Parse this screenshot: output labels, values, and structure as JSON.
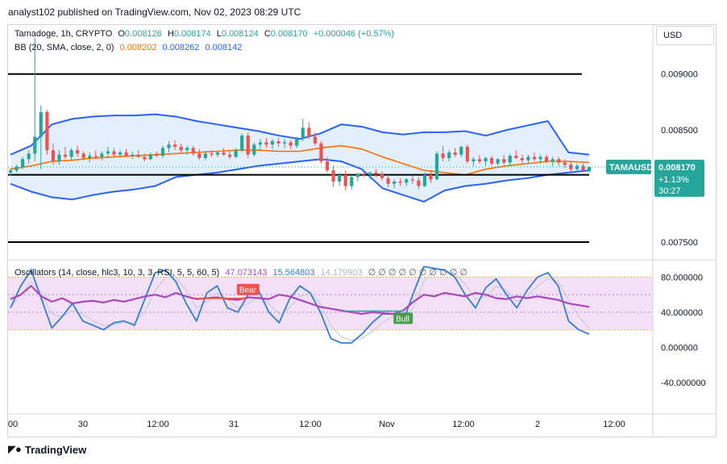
{
  "publisher_line": "analyst102 published on TradingView.com, Nov 02, 2023 08:29 UTC",
  "currency_button": "USD",
  "legend_price": {
    "symbol": "Tamadoge, 1h, CRYPTO",
    "open_label": "O",
    "open": "0.008126",
    "high_label": "H",
    "high": "0.008174",
    "low_label": "L",
    "low": "0.008124",
    "close_label": "C",
    "close": "0.008170",
    "change": "+0.000046 (+0.57%)"
  },
  "legend_bb": {
    "label": "BB (20, SMA, close, 2, 0)",
    "basis": "0.008202",
    "upper": "0.008262",
    "lower": "0.008142"
  },
  "legend_osc": {
    "label": "Oscillators (14, close, hlc3, 10, 3, 3, RSI, 5, 5, 60, 5)",
    "v1": "47.073143",
    "v2": "15.564803",
    "v3": "14.179903",
    "empties": "∅ ∅ ∅ ∅ ∅ ∅ ∅ ∅ ∅ ∅"
  },
  "price_badge": {
    "symbol": "TAMAUSD",
    "price": "0.008170",
    "change": "+1.13%",
    "countdown": "30:27"
  },
  "signals": {
    "bear": "Bear",
    "bull": "Bull"
  },
  "brand": "TradingView",
  "colors": {
    "up": "#26a69a",
    "down": "#ef5350",
    "bb_band": "#2962ff",
    "bb_basis": "#ff6d00",
    "bb_fill": "#e3effd",
    "stoch": "#2f7fd6",
    "rsi": "#ab47bc",
    "osc_fill": "#f3e0f7",
    "badge": "#26a69a"
  },
  "chart_data": [
    {
      "type": "candlestick",
      "series_name": "Tamadoge, 1h",
      "price_axis": {
        "ticks": [
          0.009,
          0.0085,
          0.0075
        ],
        "tick_labels": [
          "0.009000",
          "0.008500",
          "0.007500"
        ],
        "range": [
          0.00737,
          0.00943
        ]
      },
      "time_axis": {
        "labels": [
          "00",
          "30",
          "12:00",
          "31",
          "12:00",
          "Nov",
          "12:00",
          "2",
          "12:00"
        ]
      },
      "horizontal_levels": [
        0.009,
        0.0081,
        0.0075
      ],
      "candles": [
        [
          0.00812,
          0.00816,
          0.00809,
          0.00814
        ],
        [
          0.00814,
          0.00819,
          0.00812,
          0.00817
        ],
        [
          0.00817,
          0.00826,
          0.00815,
          0.00824
        ],
        [
          0.00824,
          0.00832,
          0.0082,
          0.00829
        ],
        [
          0.00829,
          0.00932,
          0.00822,
          0.00844
        ],
        [
          0.00844,
          0.00872,
          0.00815,
          0.00866
        ],
        [
          0.00866,
          0.00868,
          0.00828,
          0.00832
        ],
        [
          0.00832,
          0.00838,
          0.00819,
          0.00822
        ],
        [
          0.00822,
          0.00832,
          0.00819,
          0.00828
        ],
        [
          0.00828,
          0.00835,
          0.00824,
          0.00826
        ],
        [
          0.00826,
          0.00834,
          0.00823,
          0.00832
        ],
        [
          0.00832,
          0.00836,
          0.00826,
          0.00829
        ],
        [
          0.00829,
          0.00831,
          0.00823,
          0.00825
        ],
        [
          0.00825,
          0.0083,
          0.00821,
          0.00827
        ],
        [
          0.00827,
          0.00832,
          0.00824,
          0.00826
        ],
        [
          0.00826,
          0.00831,
          0.00823,
          0.00829
        ],
        [
          0.00829,
          0.00835,
          0.00825,
          0.00831
        ],
        [
          0.00831,
          0.00834,
          0.00826,
          0.00828
        ],
        [
          0.00828,
          0.00832,
          0.00825,
          0.0083
        ],
        [
          0.0083,
          0.00833,
          0.00826,
          0.00827
        ],
        [
          0.00827,
          0.00831,
          0.00824,
          0.00828
        ],
        [
          0.00828,
          0.00832,
          0.00825,
          0.00826
        ],
        [
          0.00826,
          0.00829,
          0.00822,
          0.00824
        ],
        [
          0.00824,
          0.0083,
          0.00823,
          0.00828
        ],
        [
          0.00828,
          0.00831,
          0.00826,
          0.00827
        ],
        [
          0.00827,
          0.00836,
          0.00825,
          0.00834
        ],
        [
          0.00834,
          0.0084,
          0.0083,
          0.00837
        ],
        [
          0.00837,
          0.00841,
          0.00832,
          0.00835
        ],
        [
          0.00835,
          0.00838,
          0.0083,
          0.00832
        ],
        [
          0.00832,
          0.00836,
          0.00828,
          0.00834
        ],
        [
          0.00834,
          0.00836,
          0.00827,
          0.00829
        ],
        [
          0.00829,
          0.00833,
          0.00823,
          0.00825
        ],
        [
          0.00825,
          0.00831,
          0.00823,
          0.00829
        ],
        [
          0.00829,
          0.00832,
          0.00826,
          0.00828
        ],
        [
          0.00828,
          0.00831,
          0.00826,
          0.0083
        ],
        [
          0.0083,
          0.00834,
          0.00827,
          0.00828
        ],
        [
          0.00828,
          0.00831,
          0.00824,
          0.00826
        ],
        [
          0.00826,
          0.00834,
          0.00825,
          0.00832
        ],
        [
          0.00832,
          0.00847,
          0.0083,
          0.00845
        ],
        [
          0.00845,
          0.00848,
          0.00825,
          0.00828
        ],
        [
          0.00828,
          0.00839,
          0.00826,
          0.00837
        ],
        [
          0.00837,
          0.00842,
          0.00833,
          0.00839
        ],
        [
          0.00839,
          0.00843,
          0.00834,
          0.00837
        ],
        [
          0.00837,
          0.00842,
          0.00833,
          0.0084
        ],
        [
          0.0084,
          0.00843,
          0.00835,
          0.00838
        ],
        [
          0.00838,
          0.00842,
          0.00834,
          0.00839
        ],
        [
          0.00839,
          0.00841,
          0.00833,
          0.00836
        ],
        [
          0.00836,
          0.00844,
          0.00834,
          0.00842
        ],
        [
          0.00842,
          0.0086,
          0.0084,
          0.00852
        ],
        [
          0.00852,
          0.00857,
          0.00842,
          0.00844
        ],
        [
          0.00844,
          0.00848,
          0.00836,
          0.00838
        ],
        [
          0.00838,
          0.0084,
          0.0082,
          0.00822
        ],
        [
          0.00822,
          0.00826,
          0.00812,
          0.00814
        ],
        [
          0.00814,
          0.00818,
          0.00799,
          0.00804
        ],
        [
          0.00804,
          0.00812,
          0.008,
          0.0081
        ],
        [
          0.0081,
          0.00814,
          0.00796,
          0.008
        ],
        [
          0.008,
          0.0081,
          0.00797,
          0.00808
        ],
        [
          0.00808,
          0.00812,
          0.00804,
          0.00811
        ],
        [
          0.00811,
          0.00814,
          0.00808,
          0.0081
        ],
        [
          0.0081,
          0.00813,
          0.00806,
          0.00812
        ],
        [
          0.00812,
          0.00815,
          0.00808,
          0.00811
        ],
        [
          0.00811,
          0.00813,
          0.00805,
          0.00807
        ],
        [
          0.00807,
          0.0081,
          0.00799,
          0.00802
        ],
        [
          0.00802,
          0.00806,
          0.00798,
          0.00804
        ],
        [
          0.00804,
          0.00807,
          0.008,
          0.00803
        ],
        [
          0.00803,
          0.00807,
          0.008,
          0.00806
        ],
        [
          0.00806,
          0.00809,
          0.00802,
          0.00805
        ],
        [
          0.00805,
          0.00808,
          0.00797,
          0.008
        ],
        [
          0.008,
          0.00812,
          0.00799,
          0.0081
        ],
        [
          0.0081,
          0.00814,
          0.00803,
          0.00806
        ],
        [
          0.00806,
          0.00831,
          0.00805,
          0.00829
        ],
        [
          0.00829,
          0.00836,
          0.00822,
          0.00825
        ],
        [
          0.00825,
          0.00832,
          0.00822,
          0.0083
        ],
        [
          0.0083,
          0.00834,
          0.00826,
          0.00828
        ],
        [
          0.00828,
          0.00836,
          0.00826,
          0.00835
        ],
        [
          0.00835,
          0.00837,
          0.0082,
          0.00822
        ],
        [
          0.00822,
          0.00826,
          0.00818,
          0.00824
        ],
        [
          0.00824,
          0.00828,
          0.0082,
          0.00822
        ],
        [
          0.00822,
          0.00826,
          0.00818,
          0.00825
        ],
        [
          0.00825,
          0.00827,
          0.00818,
          0.0082
        ],
        [
          0.0082,
          0.00825,
          0.00818,
          0.00824
        ],
        [
          0.00824,
          0.00828,
          0.00819,
          0.00821
        ],
        [
          0.00821,
          0.00829,
          0.00819,
          0.00827
        ],
        [
          0.00827,
          0.00832,
          0.00824,
          0.00825
        ],
        [
          0.00825,
          0.00828,
          0.0082,
          0.00823
        ],
        [
          0.00823,
          0.00828,
          0.0082,
          0.00826
        ],
        [
          0.00826,
          0.0083,
          0.00822,
          0.00824
        ],
        [
          0.00824,
          0.00828,
          0.0082,
          0.00826
        ],
        [
          0.00826,
          0.00828,
          0.0082,
          0.00822
        ],
        [
          0.00822,
          0.00826,
          0.00818,
          0.00824
        ],
        [
          0.00824,
          0.00826,
          0.00818,
          0.00821
        ],
        [
          0.00821,
          0.00824,
          0.00816,
          0.00819
        ],
        [
          0.00819,
          0.00822,
          0.00813,
          0.00815
        ],
        [
          0.00815,
          0.0082,
          0.00812,
          0.00818
        ],
        [
          0.00818,
          0.0082,
          0.00812,
          0.00814
        ],
        [
          0.00813,
          0.00817,
          0.00812,
          0.00817
        ]
      ],
      "bollinger": {
        "upper": [
          0.00828,
          0.00836,
          0.00855,
          0.0086,
          0.00862,
          0.00863,
          0.00863,
          0.00864,
          0.00862,
          0.00858,
          0.00855,
          0.00852,
          0.00849,
          0.00845,
          0.00842,
          0.00847,
          0.00855,
          0.00853,
          0.00848,
          0.00846,
          0.00848,
          0.00848,
          0.00849,
          0.00845,
          0.0085,
          0.00854,
          0.00858,
          0.0083,
          0.00828
        ],
        "basis": [
          0.00815,
          0.00818,
          0.00822,
          0.00823,
          0.00825,
          0.00826,
          0.00827,
          0.00828,
          0.00829,
          0.0083,
          0.00831,
          0.00832,
          0.00832,
          0.00831,
          0.00831,
          0.00834,
          0.00836,
          0.00833,
          0.00826,
          0.0082,
          0.00814,
          0.00812,
          0.0081,
          0.00815,
          0.00818,
          0.0082,
          0.00822,
          0.00822,
          0.00821
        ],
        "lower": [
          0.00802,
          0.00795,
          0.0079,
          0.00788,
          0.00792,
          0.00795,
          0.00797,
          0.008,
          0.00808,
          0.0081,
          0.00812,
          0.00815,
          0.00818,
          0.0082,
          0.00822,
          0.00824,
          0.00822,
          0.00815,
          0.00798,
          0.00792,
          0.00786,
          0.00796,
          0.008,
          0.00802,
          0.00805,
          0.00807,
          0.0081,
          0.00812,
          0.00814
        ]
      }
    },
    {
      "type": "line",
      "series_name": "Oscillators",
      "value_axis": {
        "ticks": [
          80,
          40,
          0,
          -40
        ],
        "tick_labels": [
          "80.000000",
          "40.000000",
          "0.000000",
          "-40.000000"
        ],
        "range": [
          -75,
          96
        ]
      },
      "band": [
        20,
        80
      ],
      "mid_lines": [
        60,
        40
      ],
      "stoch_k": [
        45,
        70,
        88,
        55,
        22,
        35,
        50,
        30,
        25,
        20,
        28,
        30,
        25,
        55,
        85,
        88,
        75,
        50,
        30,
        62,
        70,
        45,
        40,
        60,
        65,
        40,
        28,
        55,
        70,
        62,
        40,
        10,
        5,
        5,
        15,
        28,
        38,
        38,
        30,
        62,
        92,
        90,
        88,
        80,
        60,
        45,
        68,
        78,
        60,
        45,
        65,
        80,
        85,
        70,
        30,
        20,
        15
      ],
      "stoch_d": [
        45,
        60,
        75,
        62,
        38,
        35,
        42,
        38,
        30,
        25,
        26,
        28,
        28,
        40,
        65,
        80,
        80,
        65,
        45,
        52,
        62,
        55,
        45,
        50,
        58,
        50,
        38,
        45,
        58,
        62,
        50,
        25,
        12,
        8,
        10,
        18,
        28,
        35,
        33,
        45,
        75,
        88,
        88,
        84,
        72,
        55,
        58,
        70,
        65,
        52,
        58,
        70,
        78,
        75,
        55,
        35,
        22
      ],
      "rsi": [
        55,
        60,
        70,
        58,
        52,
        56,
        50,
        52,
        53,
        51,
        54,
        52,
        55,
        58,
        60,
        57,
        62,
        58,
        55,
        56,
        57,
        55,
        54,
        57,
        56,
        55,
        60,
        58,
        54,
        50,
        46,
        44,
        42,
        40,
        38,
        40,
        39,
        38,
        42,
        52,
        60,
        58,
        62,
        60,
        58,
        62,
        60,
        56,
        55,
        58,
        56,
        58,
        56,
        54,
        50,
        48,
        46
      ],
      "markers": [
        {
          "label": "Bear",
          "at_index": 23
        },
        {
          "label": "Bull",
          "at_index": 38
        }
      ]
    }
  ]
}
